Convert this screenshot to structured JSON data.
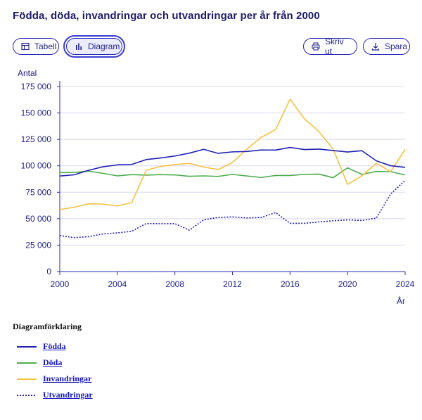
{
  "title": "Födda, döda, invandringar och utvandringar per år från 2000",
  "toolbar": {
    "tabell_label": "Tabell",
    "diagram_label": "Diagram",
    "skriv_ut_label": "Skriv ut",
    "spara_label": "Spara"
  },
  "icons": {
    "tabell": "table-icon",
    "diagram": "bar-chart-icon",
    "skriv_ut": "printer-icon",
    "spara": "download-icon"
  },
  "legend": {
    "title": "Diagramförklaring",
    "items": [
      "Födda",
      "Döda",
      "Invandringar",
      "Utvandringar"
    ]
  },
  "chart_data": {
    "type": "line",
    "ylabel": "Antal",
    "xlabel": "År",
    "x": [
      2000,
      2001,
      2002,
      2003,
      2004,
      2005,
      2006,
      2007,
      2008,
      2009,
      2010,
      2011,
      2012,
      2013,
      2014,
      2015,
      2016,
      2017,
      2018,
      2019,
      2020,
      2021,
      2022,
      2023,
      2024
    ],
    "xticks": [
      "2000",
      "2004",
      "2008",
      "2012",
      "2016",
      "2020",
      "2024"
    ],
    "yticks": [
      "0",
      "25 000",
      "50 000",
      "75 000",
      "100 000",
      "125 000",
      "150 000",
      "175 000"
    ],
    "ylim": [
      0,
      175000
    ],
    "xlim": [
      2000,
      2024
    ],
    "grid": true,
    "series": [
      {
        "name": "Födda",
        "color": "#2121b5",
        "style": "solid",
        "values": [
          90400,
          91500,
          95800,
          99100,
          100900,
          101300,
          105900,
          107400,
          109300,
          112000,
          115600,
          111800,
          113200,
          113600,
          115000,
          114900,
          117400,
          115400,
          115800,
          114500,
          113100,
          114300,
          104700,
          100100,
          98500
        ]
      },
      {
        "name": "Döda",
        "color": "#4cad4c",
        "style": "solid",
        "values": [
          93500,
          93800,
          95000,
          92900,
          90500,
          91700,
          91200,
          91700,
          91400,
          90100,
          90500,
          90000,
          91900,
          90400,
          89000,
          90900,
          90900,
          91900,
          92200,
          88800,
          98100,
          91900,
          94700,
          94400,
          91400
        ]
      },
      {
        "name": "Invandringar",
        "color": "#f5c242",
        "style": "solid",
        "values": [
          58700,
          60800,
          64100,
          63800,
          62000,
          65200,
          95800,
          99500,
          101200,
          102300,
          98800,
          96500,
          103100,
          115800,
          127000,
          134200,
          163000,
          144500,
          132600,
          115800,
          82500,
          90600,
          102400,
          94500,
          115600
        ]
      },
      {
        "name": "Utvandringar",
        "color": "#2121b5",
        "style": "dotted",
        "values": [
          34100,
          32100,
          33000,
          35600,
          36600,
          38100,
          45400,
          45300,
          45300,
          39200,
          48900,
          51200,
          51700,
          50700,
          51200,
          55800,
          45600,
          45600,
          46900,
          48000,
          48900,
          48300,
          50600,
          73400,
          86200
        ]
      }
    ]
  }
}
